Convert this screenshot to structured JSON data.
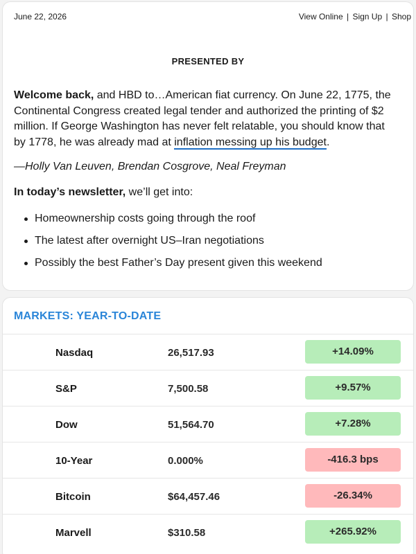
{
  "header": {
    "date": "June 22, 2026",
    "view_online": "View Online",
    "sign_up": "Sign Up",
    "shop": "Shop",
    "separator": "|"
  },
  "presented_by": "PRESENTED BY",
  "intro": {
    "bold_lead": "Welcome back,",
    "text_before_link": " and HBD to…American fiat currency. On June 22, 1775, the Continental Congress created legal tender and authorized the printing of $2 million. If George Washington has never felt relatable, you should know that by 1778, he was already mad at ",
    "link_text": "inflation messing up his budget",
    "text_after_link": "."
  },
  "authors": "—Holly Van Leuven, Brendan Cosgrove, Neal Freyman",
  "todays": {
    "bold": "In today’s newsletter,",
    "rest": " we’ll get into:"
  },
  "bullets": [
    "Homeownership costs going through the roof",
    "The latest after overnight US–Iran negotiations",
    "Possibly the best Father’s Day present given this weekend"
  ],
  "markets": {
    "title": "MARKETS: YEAR-TO-DATE",
    "rows": [
      {
        "name": "Nasdaq",
        "value": "26,517.93",
        "change": "+14.09%",
        "direction": "up"
      },
      {
        "name": "S&P",
        "value": "7,500.58",
        "change": "+9.57%",
        "direction": "up"
      },
      {
        "name": "Dow",
        "value": "51,564.70",
        "change": "+7.28%",
        "direction": "up"
      },
      {
        "name": "10-Year",
        "value": "0.000%",
        "change": "-416.3 bps",
        "direction": "down"
      },
      {
        "name": "Bitcoin",
        "value": "$64,457.46",
        "change": "-26.34%",
        "direction": "down"
      },
      {
        "name": "Marvell",
        "value": "$310.58",
        "change": "+265.92%",
        "direction": "up"
      }
    ]
  },
  "colors": {
    "accent": "#2a85d8",
    "link_underline": "#1f6fc5",
    "up_bg": "#b7edb9",
    "down_bg": "#ffb9bb"
  }
}
